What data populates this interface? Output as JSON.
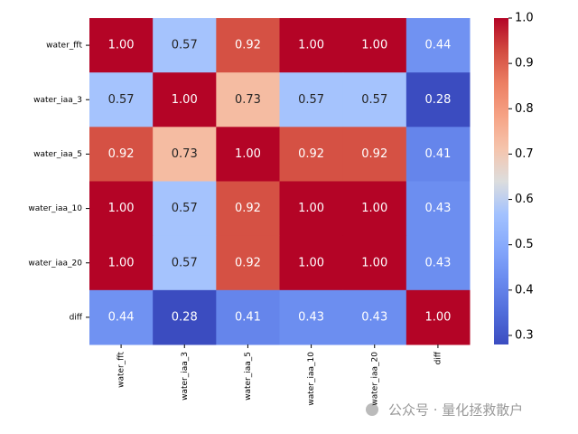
{
  "chart_data": {
    "type": "heatmap",
    "x": [
      "water_fft",
      "water_iaa_3",
      "water_iaa_5",
      "water_iaa_10",
      "water_iaa_20",
      "diff"
    ],
    "y": [
      "water_fft",
      "water_iaa_3",
      "water_iaa_5",
      "water_iaa_10",
      "water_iaa_20",
      "diff"
    ],
    "values": [
      [
        1,
        0.57,
        0.92,
        1,
        1,
        0.44
      ],
      [
        0.57,
        1,
        0.73,
        0.57,
        0.57,
        0.28
      ],
      [
        0.92,
        0.73,
        1,
        0.92,
        0.92,
        0.41
      ],
      [
        1,
        0.57,
        0.92,
        1,
        1,
        0.43
      ],
      [
        1,
        0.57,
        0.92,
        1,
        1,
        0.43
      ],
      [
        0.44,
        0.28,
        0.41,
        0.43,
        0.43,
        1
      ]
    ],
    "value_labels": [
      [
        "1.00",
        "0.57",
        "0.92",
        "1.00",
        "1.00",
        "0.44"
      ],
      [
        "0.57",
        "1.00",
        "0.73",
        "0.57",
        "0.57",
        "0.28"
      ],
      [
        "0.92",
        "0.73",
        "1.00",
        "0.92",
        "0.92",
        "0.41"
      ],
      [
        "1.00",
        "0.57",
        "0.92",
        "1.00",
        "1.00",
        "0.43"
      ],
      [
        "1.00",
        "0.57",
        "0.92",
        "1.00",
        "1.00",
        "0.43"
      ],
      [
        "0.44",
        "0.28",
        "0.41",
        "0.43",
        "0.43",
        "1.00"
      ]
    ],
    "colormap": "coolwarm",
    "clim": [
      0.28,
      1
    ],
    "cticks": [
      0.3,
      0.4,
      0.5,
      0.6,
      0.7,
      0.8,
      0.9,
      {
        "value": 1,
        "label": "1.0"
      }
    ],
    "watermark": "公众号 · 量化拯救散户"
  }
}
